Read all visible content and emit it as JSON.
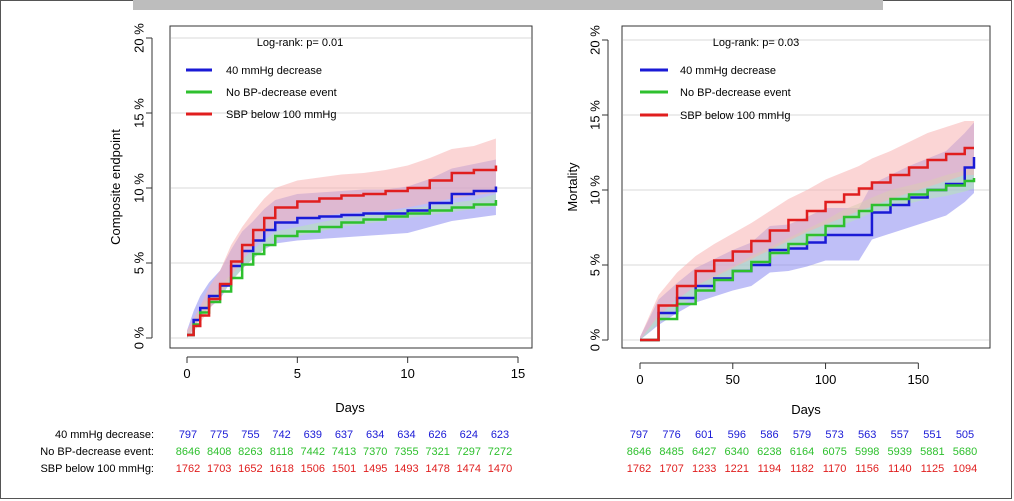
{
  "charts": [
    {
      "type": "line",
      "ylabel": "Composite endpoint",
      "xlabel": "Days",
      "annotation": "Log-rank: p= 0.01",
      "xlim": [
        0,
        15
      ],
      "ylim": [
        0,
        20
      ],
      "xticks": [
        "0",
        "5",
        "10",
        "15"
      ],
      "xtick_values": [
        0,
        5,
        10,
        15
      ],
      "yticks": [
        "0 %",
        "5 %",
        "10 %",
        "15 %",
        "20 %"
      ],
      "ytick_values": [
        0,
        5,
        10,
        15,
        20
      ],
      "legend": [
        "40 mmHg decrease",
        "No BP-decrease event",
        "SBP below 100 mmHg"
      ],
      "series": [
        {
          "name": "40 mmHg decrease",
          "color": "#1a1ad6",
          "band": "#8a8af0",
          "x": [
            0,
            0.3,
            0.6,
            1,
            1.5,
            2,
            2.5,
            3,
            3.5,
            4,
            5,
            6,
            7,
            8,
            9,
            10,
            11,
            12,
            13,
            14
          ],
          "y": [
            0.2,
            1.2,
            2.0,
            2.8,
            3.5,
            4.8,
            5.8,
            6.5,
            7.2,
            7.7,
            8.0,
            8.1,
            8.2,
            8.3,
            8.3,
            8.5,
            9.0,
            9.6,
            9.8,
            10.1
          ],
          "lower": [
            0,
            0.6,
            1.4,
            2.0,
            2.6,
            3.8,
            4.6,
            5.3,
            5.9,
            6.3,
            6.5,
            6.6,
            6.7,
            6.8,
            6.9,
            7.0,
            7.4,
            7.8,
            8.0,
            8.2
          ],
          "upper": [
            0.5,
            1.8,
            2.8,
            3.7,
            4.5,
            5.9,
            7.1,
            7.8,
            8.6,
            9.2,
            9.6,
            9.7,
            9.8,
            9.9,
            9.9,
            10.1,
            10.6,
            11.3,
            11.6,
            11.9
          ]
        },
        {
          "name": "No BP-decrease event",
          "color": "#2ec02e",
          "band": "#b7e6b7",
          "x": [
            0,
            0.3,
            0.6,
            1,
            1.5,
            2,
            2.5,
            3,
            3.5,
            4,
            5,
            6,
            7,
            8,
            9,
            10,
            11,
            12,
            13,
            14
          ],
          "y": [
            0.2,
            0.9,
            1.7,
            2.4,
            3.1,
            4.0,
            4.9,
            5.6,
            6.2,
            6.8,
            7.1,
            7.4,
            7.7,
            7.9,
            8.1,
            8.3,
            8.5,
            8.7,
            8.9,
            9.2
          ],
          "lower": [
            0.1,
            0.7,
            1.4,
            2.1,
            2.8,
            3.7,
            4.6,
            5.3,
            5.9,
            6.5,
            6.8,
            7.1,
            7.4,
            7.6,
            7.8,
            8.0,
            8.2,
            8.4,
            8.6,
            8.8
          ],
          "upper": [
            0.3,
            1.1,
            2.0,
            2.7,
            3.4,
            4.3,
            5.2,
            5.9,
            6.5,
            7.1,
            7.4,
            7.7,
            8.0,
            8.2,
            8.4,
            8.6,
            8.8,
            9.0,
            9.2,
            9.6
          ]
        },
        {
          "name": "SBP below 100 mmHg",
          "color": "#e01e1e",
          "band": "#f7b3b3",
          "x": [
            0,
            0.3,
            0.6,
            1,
            1.5,
            2,
            2.5,
            3,
            3.5,
            4,
            5,
            6,
            7,
            8,
            9,
            10,
            11,
            12,
            13,
            14
          ],
          "y": [
            0.2,
            0.8,
            1.5,
            2.6,
            3.6,
            5.1,
            6.2,
            7.2,
            8.0,
            8.7,
            9.1,
            9.3,
            9.5,
            9.6,
            9.8,
            10.0,
            10.5,
            11.0,
            11.2,
            11.5
          ],
          "lower": [
            0,
            0.4,
            1.0,
            1.9,
            2.8,
            4.1,
            5.2,
            6.1,
            6.8,
            7.5,
            7.9,
            8.1,
            8.3,
            8.4,
            8.5,
            8.7,
            9.0,
            9.3,
            9.5,
            9.7
          ],
          "upper": [
            0.5,
            1.3,
            2.1,
            3.4,
            4.5,
            6.2,
            7.4,
            8.4,
            9.3,
            10.0,
            10.5,
            10.7,
            10.9,
            11.0,
            11.2,
            11.5,
            12.0,
            12.6,
            12.8,
            13.3
          ]
        }
      ]
    },
    {
      "type": "line",
      "ylabel": "Mortality",
      "xlabel": "Days",
      "annotation": "Log-rank: p= 0.03",
      "xlim": [
        0,
        180
      ],
      "ylim": [
        0,
        20
      ],
      "xticks": [
        "0",
        "50",
        "100",
        "150"
      ],
      "xtick_values": [
        0,
        50,
        100,
        150
      ],
      "yticks": [
        "0 %",
        "5 %",
        "10 %",
        "15 %",
        "20 %"
      ],
      "ytick_values": [
        0,
        5,
        10,
        15,
        20
      ],
      "legend": [
        "40 mmHg decrease",
        "No BP-decrease event",
        "SBP below 100 mmHg"
      ],
      "series": [
        {
          "name": "40 mmHg decrease",
          "color": "#1a1ad6",
          "band": "#8a8af0",
          "x": [
            0,
            10,
            20,
            30,
            40,
            50,
            60,
            70,
            80,
            90,
            100,
            110,
            118,
            125,
            135,
            145,
            155,
            165,
            175,
            180
          ],
          "y": [
            0,
            1.8,
            2.8,
            3.6,
            4.1,
            4.6,
            5.0,
            6.0,
            6.1,
            6.5,
            7.0,
            7.0,
            7.0,
            8.5,
            9.0,
            9.5,
            10.0,
            10.4,
            11.5,
            12.2
          ],
          "lower": [
            0,
            1.0,
            1.8,
            2.5,
            2.9,
            3.3,
            3.6,
            4.5,
            4.6,
            4.9,
            5.3,
            5.3,
            5.3,
            6.7,
            7.1,
            7.5,
            7.9,
            8.3,
            9.2,
            9.8
          ],
          "upper": [
            0.2,
            2.7,
            3.8,
            4.8,
            5.4,
            6.0,
            6.5,
            7.6,
            7.7,
            8.2,
            8.8,
            8.8,
            8.8,
            10.4,
            11.0,
            11.6,
            12.1,
            12.6,
            13.8,
            14.5
          ]
        },
        {
          "name": "No BP-decrease event",
          "color": "#2ec02e",
          "band": "#b7e6b7",
          "x": [
            0,
            10,
            20,
            30,
            40,
            50,
            60,
            70,
            80,
            90,
            100,
            110,
            118,
            125,
            135,
            145,
            155,
            165,
            175,
            180
          ],
          "y": [
            0,
            1.4,
            2.4,
            3.3,
            4.0,
            4.6,
            5.2,
            5.8,
            6.4,
            7.0,
            7.6,
            8.2,
            8.6,
            9.0,
            9.4,
            9.7,
            10.0,
            10.3,
            10.6,
            10.8
          ],
          "lower": [
            0,
            1.1,
            2.1,
            3.0,
            3.7,
            4.3,
            4.8,
            5.4,
            6.0,
            6.6,
            7.2,
            7.7,
            8.1,
            8.5,
            8.8,
            9.1,
            9.4,
            9.6,
            9.9,
            10.1
          ],
          "upper": [
            0,
            1.7,
            2.7,
            3.6,
            4.3,
            4.9,
            5.6,
            6.2,
            6.8,
            7.4,
            8.0,
            8.7,
            9.1,
            9.5,
            10.0,
            10.3,
            10.6,
            11.0,
            11.3,
            11.5
          ]
        },
        {
          "name": "SBP below 100 mmHg",
          "color": "#e01e1e",
          "band": "#f7b3b3",
          "x": [
            0,
            10,
            20,
            30,
            40,
            50,
            60,
            70,
            80,
            90,
            100,
            110,
            118,
            125,
            135,
            145,
            155,
            165,
            175,
            180
          ],
          "y": [
            0,
            2.3,
            3.6,
            4.6,
            5.3,
            5.9,
            6.6,
            7.3,
            8.0,
            8.6,
            9.2,
            9.7,
            10.1,
            10.5,
            11.0,
            11.5,
            12.0,
            12.4,
            12.8,
            12.8
          ],
          "lower": [
            0,
            1.6,
            2.7,
            3.6,
            4.2,
            4.8,
            5.4,
            6.0,
            6.6,
            7.2,
            7.7,
            8.2,
            8.6,
            8.9,
            9.4,
            9.8,
            10.2,
            10.6,
            11.0,
            11.0
          ],
          "upper": [
            0.2,
            3.0,
            4.5,
            5.6,
            6.4,
            7.1,
            7.8,
            8.6,
            9.4,
            10.0,
            10.7,
            11.2,
            11.6,
            12.1,
            12.6,
            13.2,
            13.8,
            14.2,
            14.6,
            14.6
          ]
        }
      ]
    }
  ],
  "risk_table": {
    "labels": [
      "40 mmHg decrease:",
      "No BP-decrease event:",
      "SBP below 100 mmHg:"
    ],
    "left": [
      [
        "797",
        "775",
        "755",
        "742",
        "639",
        "637",
        "634",
        "634",
        "626",
        "624",
        "623"
      ],
      [
        "8646",
        "8408",
        "8263",
        "8118",
        "7442",
        "7413",
        "7370",
        "7355",
        "7321",
        "7297",
        "7272"
      ],
      [
        "1762",
        "1703",
        "1652",
        "1618",
        "1506",
        "1501",
        "1495",
        "1493",
        "1478",
        "1474",
        "1470"
      ]
    ],
    "right": [
      [
        "797",
        "776",
        "601",
        "596",
        "586",
        "579",
        "573",
        "563",
        "557",
        "551",
        "505"
      ],
      [
        "8646",
        "8485",
        "6427",
        "6340",
        "6238",
        "6164",
        "6075",
        "5998",
        "5939",
        "5881",
        "5680"
      ],
      [
        "1762",
        "1707",
        "1233",
        "1221",
        "1194",
        "1182",
        "1170",
        "1156",
        "1140",
        "1125",
        "1094"
      ]
    ],
    "colors": [
      "#1a1ad6",
      "#2ec02e",
      "#e01e1e"
    ]
  }
}
